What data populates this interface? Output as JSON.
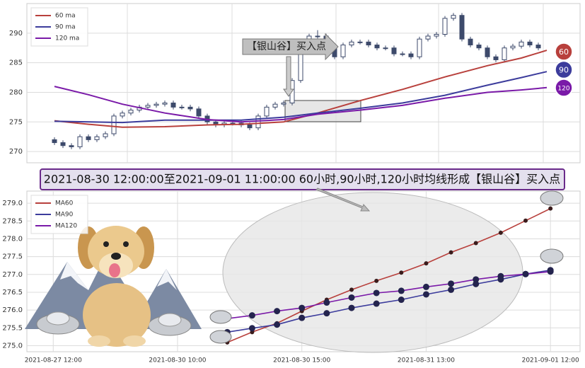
{
  "banner": {
    "text": "2021-08-30 12:00:00至2021-09-01 11:00:00 60小时,90小时,120小时均线形成【银山谷】买入点"
  },
  "chart_data": [
    {
      "type": "candlestick",
      "annotation": "【银山谷】买入点",
      "ylim": [
        268.1,
        295.0
      ],
      "yticks": [
        270,
        275,
        280,
        285,
        290
      ],
      "grid": true,
      "legend": "upper left",
      "up_color": "#ffffff",
      "down_color": "#3d4a6b",
      "open": [
        272.0,
        271.5,
        271.0,
        270.8,
        272.5,
        272.0,
        272.5,
        273.0,
        276.0,
        276.5,
        277.0,
        277.5,
        277.8,
        278.0,
        278.2,
        277.5,
        277.5,
        277.2,
        276.0,
        275.0,
        274.5,
        274.8,
        274.8,
        274.5,
        274.0,
        276.0,
        277.5,
        278.0,
        278.2,
        282.0,
        287.0,
        289.5,
        289.5,
        287.5,
        286.0,
        288.0,
        288.5,
        288.5,
        288.0,
        287.5,
        287.5,
        286.5,
        286.5,
        286.0,
        289.0,
        289.5,
        289.8,
        292.5,
        293.0,
        289.0,
        288.0,
        287.5,
        286.0,
        285.5,
        287.5,
        287.8,
        288.5,
        288.0
      ],
      "high": [
        272.4,
        271.9,
        271.4,
        272.9,
        272.9,
        272.9,
        273.4,
        276.4,
        276.9,
        277.4,
        277.9,
        278.2,
        278.4,
        278.6,
        278.6,
        277.9,
        277.9,
        277.6,
        276.4,
        275.4,
        275.2,
        275.2,
        275.2,
        274.9,
        276.4,
        277.9,
        278.4,
        278.6,
        282.4,
        287.4,
        289.9,
        290.5,
        289.9,
        287.9,
        288.4,
        288.9,
        288.9,
        288.9,
        288.4,
        287.9,
        287.9,
        286.9,
        286.9,
        289.4,
        289.9,
        290.2,
        292.9,
        293.4,
        293.4,
        289.4,
        288.4,
        287.9,
        286.4,
        287.9,
        288.2,
        288.9,
        288.9,
        288.4
      ],
      "low": [
        271.1,
        270.6,
        270.4,
        270.4,
        271.6,
        271.6,
        272.1,
        272.6,
        275.6,
        276.1,
        276.6,
        277.1,
        277.4,
        277.6,
        277.1,
        277.1,
        276.8,
        275.6,
        274.6,
        274.1,
        274.1,
        274.4,
        274.1,
        273.6,
        273.6,
        275.6,
        277.1,
        277.6,
        277.8,
        281.6,
        286.6,
        289.1,
        287.1,
        285.6,
        285.6,
        287.6,
        288.1,
        287.6,
        287.1,
        287.1,
        286.1,
        286.1,
        285.6,
        285.6,
        288.6,
        289.1,
        289.4,
        292.1,
        288.6,
        287.6,
        287.1,
        285.6,
        285.1,
        285.1,
        287.1,
        287.4,
        287.6,
        287.1
      ],
      "close": [
        271.5,
        271.0,
        270.8,
        272.5,
        272.0,
        272.5,
        273.0,
        276.0,
        276.5,
        277.0,
        277.5,
        277.8,
        278.0,
        278.2,
        277.5,
        277.5,
        277.2,
        276.0,
        275.0,
        274.5,
        274.8,
        274.8,
        274.5,
        274.0,
        276.0,
        277.5,
        278.0,
        278.2,
        282.0,
        287.0,
        289.5,
        289.5,
        287.5,
        286.0,
        288.0,
        288.5,
        288.5,
        288.0,
        287.5,
        287.5,
        286.5,
        286.5,
        286.0,
        289.0,
        289.5,
        289.8,
        292.5,
        293.0,
        289.0,
        288.0,
        287.5,
        286.0,
        285.5,
        287.5,
        287.8,
        288.5,
        288.0,
        287.5
      ],
      "series": [
        {
          "name": "60 ma",
          "end_label": "60",
          "color": "#b8403c",
          "x": [
            0,
            4,
            8,
            13,
            18,
            22,
            27,
            31,
            36,
            41,
            46,
            51,
            55,
            58
          ],
          "values": [
            275.2,
            274.6,
            274.1,
            274.2,
            274.5,
            274.6,
            275.0,
            276.5,
            278.6,
            280.5,
            282.6,
            284.5,
            285.8,
            287.1
          ]
        },
        {
          "name": "90 ma",
          "end_label": "90",
          "color": "#3c3c9c",
          "x": [
            0,
            8,
            13,
            18,
            22,
            27,
            31,
            36,
            41,
            46,
            51,
            55,
            58
          ],
          "values": [
            275.1,
            274.9,
            275.3,
            275.3,
            275.3,
            275.8,
            276.5,
            277.3,
            278.2,
            279.5,
            281.2,
            282.5,
            283.5
          ]
        },
        {
          "name": "120 ma",
          "end_label": "120",
          "color": "#7a1aa8",
          "x": [
            0,
            4,
            8,
            13,
            18,
            22,
            27,
            31,
            36,
            41,
            46,
            51,
            55,
            58
          ],
          "values": [
            281.0,
            279.6,
            278.0,
            276.5,
            275.4,
            275.0,
            275.4,
            276.3,
            277.0,
            277.8,
            279.0,
            280.0,
            280.4,
            280.8
          ]
        }
      ]
    },
    {
      "type": "line",
      "ylim": [
        274.83,
        279.34
      ],
      "yticks": [
        {
          "value": 275.0,
          "label": "275.0"
        },
        {
          "value": 275.5,
          "label": "275.5"
        },
        {
          "value": 276.0,
          "label": "276.0"
        },
        {
          "value": 276.5,
          "label": "276.5"
        },
        {
          "value": 277.0,
          "label": "277.0"
        },
        {
          "value": 277.5,
          "label": "277.5"
        },
        {
          "value": 278.0,
          "label": "278.0"
        },
        {
          "value": 278.5,
          "label": "278.5"
        },
        {
          "value": 279.0,
          "label": "279.0"
        }
      ],
      "xlim": [
        -8.06,
        14.19
      ],
      "xticks": [
        {
          "value": -7,
          "label": "2021-08-27 12:00"
        },
        {
          "value": -2,
          "label": "2021-08-30 10:00"
        },
        {
          "value": 3,
          "label": "2021-08-30 15:00"
        },
        {
          "value": 8,
          "label": "2021-08-31 13:00"
        },
        {
          "value": 13,
          "label": "2021-09-01 12:00"
        }
      ],
      "grid": true,
      "legend": "upper left",
      "x": [
        0,
        1,
        2,
        3,
        4,
        5,
        6,
        7,
        8,
        9,
        10,
        11,
        12,
        13
      ],
      "series": [
        {
          "name": "MA60",
          "color": "#b8403c",
          "marker_color": "#3a1c1c",
          "values": [
            275.09,
            275.38,
            275.63,
            275.97,
            276.29,
            276.57,
            276.82,
            277.05,
            277.31,
            277.62,
            277.88,
            278.17,
            278.51,
            278.85
          ]
        },
        {
          "name": "MA90",
          "color": "#3c3c9c",
          "marker_color": "#24244e",
          "values": [
            275.38,
            275.49,
            275.59,
            275.78,
            275.91,
            276.06,
            276.18,
            276.29,
            276.44,
            276.57,
            276.73,
            276.86,
            277.01,
            277.12
          ]
        },
        {
          "name": "MA120",
          "color": "#7a1aa8",
          "marker_color": "#24244e",
          "values": [
            275.76,
            275.85,
            275.97,
            276.06,
            276.21,
            276.35,
            276.48,
            276.54,
            276.65,
            276.74,
            276.86,
            276.95,
            277.01,
            277.08
          ]
        }
      ]
    }
  ]
}
